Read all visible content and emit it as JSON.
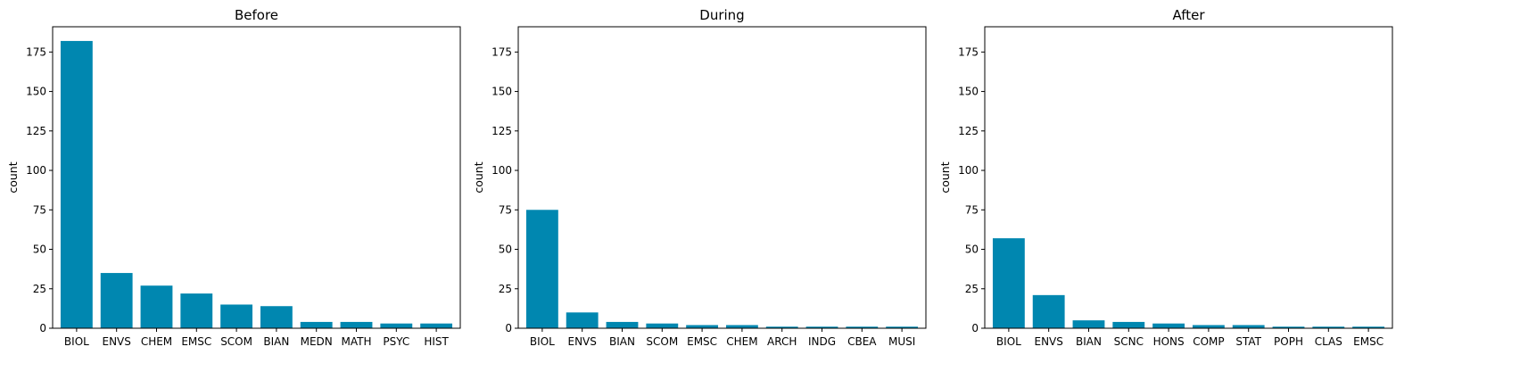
{
  "chart_data": [
    {
      "type": "bar",
      "title": "Before",
      "xlabel": "",
      "ylabel": "count",
      "ylim": [
        0,
        191
      ],
      "yticks": [
        0,
        25,
        50,
        75,
        100,
        125,
        150,
        175
      ],
      "categories": [
        "BIOL",
        "ENVS",
        "CHEM",
        "EMSC",
        "SCOM",
        "BIAN",
        "MEDN",
        "MATH",
        "PSYC",
        "HIST"
      ],
      "values": [
        182,
        35,
        27,
        22,
        15,
        14,
        4,
        4,
        3,
        3
      ],
      "grid": false,
      "color": "#0087b0"
    },
    {
      "type": "bar",
      "title": "During",
      "xlabel": "",
      "ylabel": "count",
      "ylim": [
        0,
        191
      ],
      "yticks": [
        0,
        25,
        50,
        75,
        100,
        125,
        150,
        175
      ],
      "categories": [
        "BIOL",
        "ENVS",
        "BIAN",
        "SCOM",
        "EMSC",
        "CHEM",
        "ARCH",
        "INDG",
        "CBEA",
        "MUSI"
      ],
      "values": [
        75,
        10,
        4,
        3,
        2,
        2,
        1,
        1,
        1,
        1
      ],
      "grid": false,
      "color": "#0087b0"
    },
    {
      "type": "bar",
      "title": "After",
      "xlabel": "",
      "ylabel": "count",
      "ylim": [
        0,
        191
      ],
      "yticks": [
        0,
        25,
        50,
        75,
        100,
        125,
        150,
        175
      ],
      "categories": [
        "BIOL",
        "ENVS",
        "BIAN",
        "SCNC",
        "HONS",
        "COMP",
        "STAT",
        "POPH",
        "CLAS",
        "EMSC"
      ],
      "values": [
        57,
        21,
        5,
        4,
        3,
        2,
        2,
        1,
        1,
        1
      ],
      "grid": false,
      "color": "#0087b0"
    }
  ]
}
